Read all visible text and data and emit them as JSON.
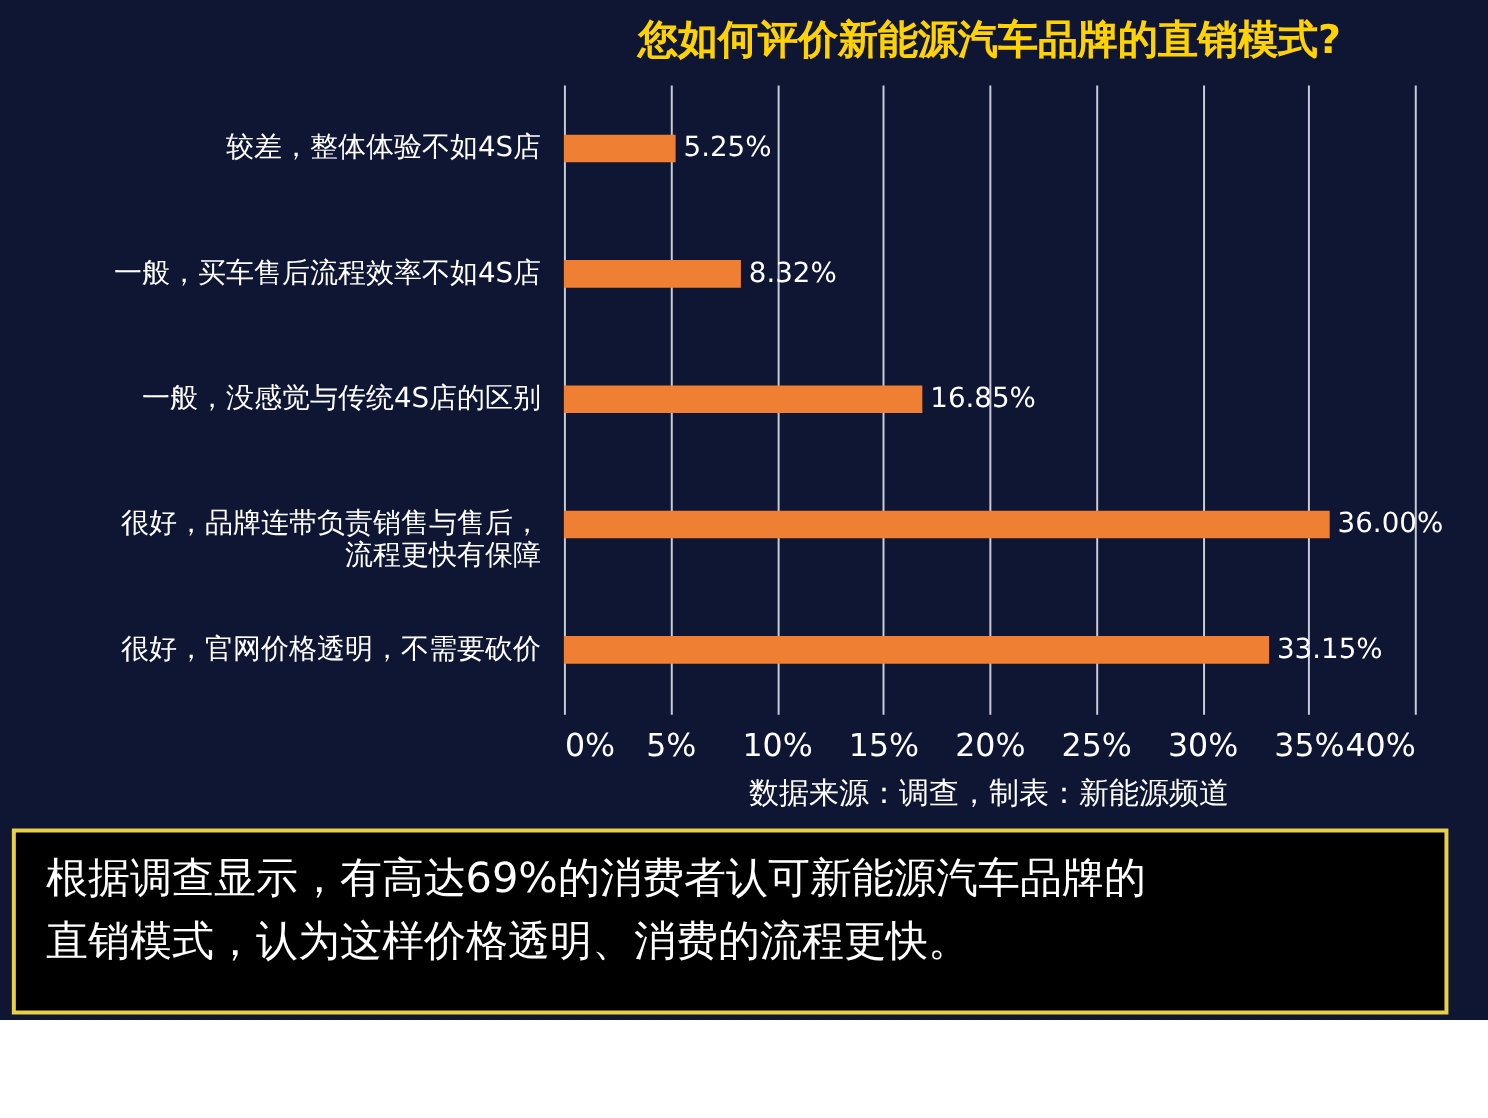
{
  "chart_data": {
    "type": "bar",
    "orientation": "horizontal",
    "title": "您如何评价新能源汽车品牌的直销模式?",
    "categories": [
      "较差，整体体验不如4S店",
      "一般，买车售后流程效率不如4S店",
      "一般，没感觉与传统4S店的区别",
      "很好，品牌连带负责销售与售后，流程更快有保障",
      "很好，官网价格透明，不需要砍价"
    ],
    "values": [
      5.25,
      8.32,
      16.85,
      36.0,
      33.15
    ],
    "value_labels": [
      "5.25%",
      "8.32%",
      "16.85%",
      "36.00%",
      "33.15%"
    ],
    "color": "#ee7f33",
    "xlim": [
      0,
      40
    ],
    "xticks": [
      {
        "value": 0,
        "label": "0%"
      },
      {
        "value": 5,
        "label": "5%"
      },
      {
        "value": 10,
        "label": "10%"
      },
      {
        "value": 15,
        "label": "15%"
      },
      {
        "value": 20,
        "label": "20%"
      },
      {
        "value": 25,
        "label": "25%"
      },
      {
        "value": 30,
        "label": "30%"
      },
      {
        "value": 35,
        "label": "35%"
      },
      {
        "value": 40,
        "label": "40%"
      }
    ],
    "grid": "x",
    "annotations": [
      "数据来源：调查，制表：新能源频道",
      "根据调查显示，有高达69%的消费者认可新能源汽车品牌的直销模式，认为这样价格透明、消费的流程更快。"
    ]
  }
}
